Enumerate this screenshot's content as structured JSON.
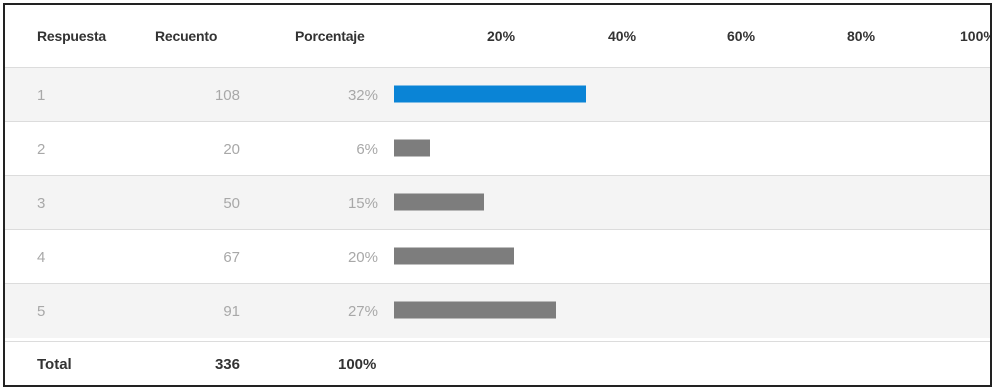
{
  "headers": {
    "respuesta": "Respuesta",
    "recuento": "Recuento",
    "porcentaje": "Porcentaje"
  },
  "rows": [
    {
      "respuesta": "1",
      "recuento": "108",
      "porcentaje": "32%"
    },
    {
      "respuesta": "2",
      "recuento": "20",
      "porcentaje": "6%"
    },
    {
      "respuesta": "3",
      "recuento": "50",
      "porcentaje": "15%"
    },
    {
      "respuesta": "4",
      "recuento": "67",
      "porcentaje": "20%"
    },
    {
      "respuesta": "5",
      "recuento": "91",
      "porcentaje": "27%"
    }
  ],
  "total": {
    "label": "Total",
    "recuento": "336",
    "porcentaje": "100%"
  },
  "chart_data": {
    "type": "bar",
    "orientation": "horizontal",
    "categories": [
      "1",
      "2",
      "3",
      "4",
      "5"
    ],
    "values": [
      32,
      6,
      15,
      20,
      27
    ],
    "xlim": [
      0,
      100
    ],
    "x_ticks": [
      "20%",
      "40%",
      "60%",
      "80%",
      "100%"
    ],
    "grid": false,
    "colors": {
      "highlight": "#0a84d6",
      "default": "#7d7d7d"
    }
  }
}
